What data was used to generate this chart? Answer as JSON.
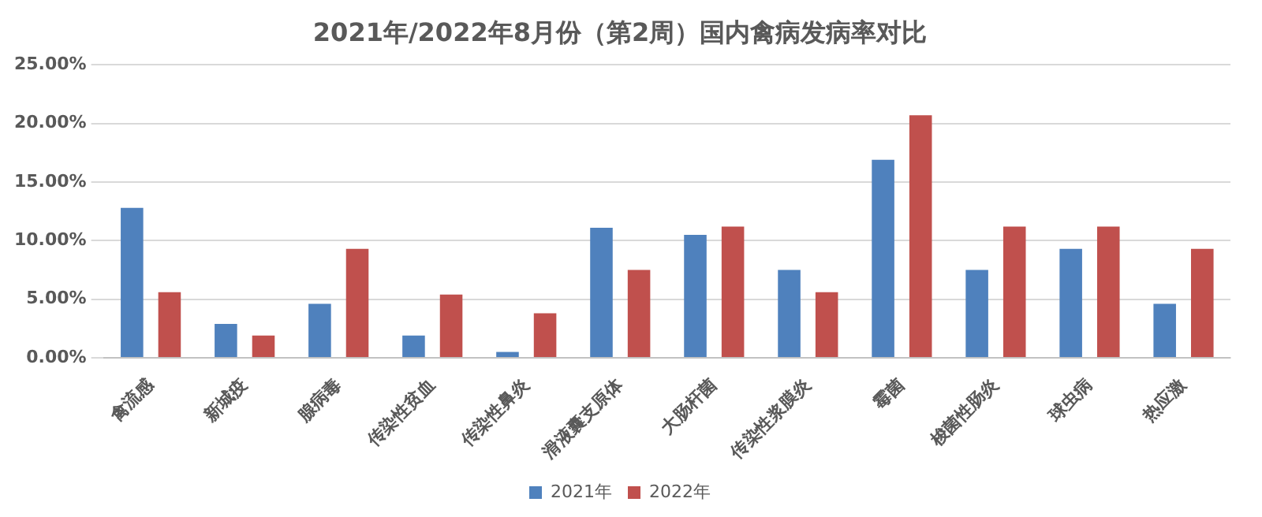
{
  "chart_data": {
    "type": "bar",
    "title": "2021年/2022年8月份（第2周）国内禽病发病率对比",
    "categories": [
      "禽流感",
      "新城疫",
      "腺病毒",
      "传染性贫血",
      "传染性鼻炎",
      "滑液囊支原体",
      "大肠杆菌",
      "传染性浆膜炎",
      "霉菌",
      "梭菌性肠炎",
      "球虫病",
      "热应激"
    ],
    "series": [
      {
        "name": "2021年",
        "color": "#4f81bd",
        "values": [
          12.8,
          2.9,
          4.6,
          1.9,
          0.5,
          11.1,
          10.5,
          7.5,
          16.9,
          7.5,
          9.3,
          4.6
        ]
      },
      {
        "name": "2022年",
        "color": "#c0504d",
        "values": [
          5.6,
          1.9,
          9.3,
          5.4,
          3.8,
          7.5,
          11.2,
          5.6,
          20.7,
          11.2,
          11.2,
          9.3
        ]
      }
    ],
    "ylim": [
      0,
      25
    ],
    "yticks": [
      {
        "value": 0,
        "label": "0.00%"
      },
      {
        "value": 5,
        "label": "5.00%"
      },
      {
        "value": 10,
        "label": "10.00%"
      },
      {
        "value": 15,
        "label": "15.00%"
      },
      {
        "value": 20,
        "label": "20.00%"
      },
      {
        "value": 25,
        "label": "25.00%"
      }
    ],
    "grid": "y",
    "legend": "bottom"
  }
}
